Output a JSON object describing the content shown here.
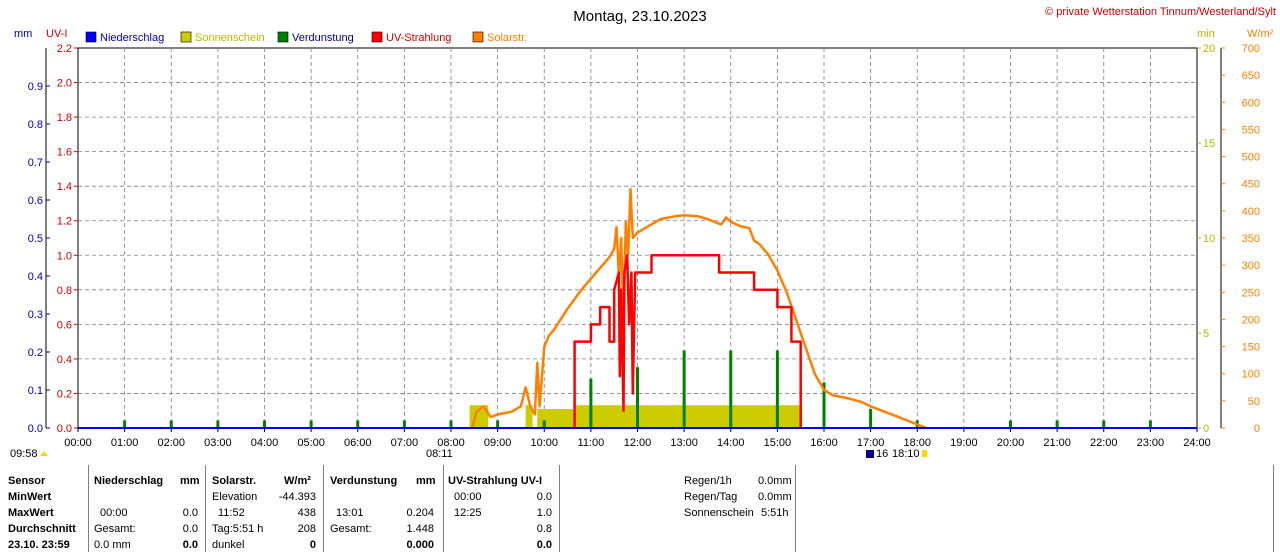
{
  "title": "Montag, 23.10.2023",
  "copyright": "© private Wetterstation Tinnum/Westerland/Sylt",
  "axis_units": {
    "left_outer": "mm",
    "left_inner": "UV-I",
    "right_inner": "min",
    "right_outer": "W/m²"
  },
  "legend": [
    {
      "label": "Niederschlag",
      "color": "#0000ff",
      "text_color": "#0000a0"
    },
    {
      "label": "Sonnenschein",
      "color": "#cccc00",
      "text_color": "#b8b800"
    },
    {
      "label": "Verdunstung",
      "color": "#008000",
      "text_color": "#000080"
    },
    {
      "label": "UV-Strahlung",
      "color": "#ff0000",
      "text_color": "#d00000"
    },
    {
      "label": "Solarstr.",
      "color": "#ff8000",
      "text_color": "#ff8000"
    }
  ],
  "sun_times": {
    "sunrise": "08:11",
    "sunset": "18:10",
    "daylight": "09:58",
    "sunset_marker": "16"
  },
  "chart_data": {
    "type": "line",
    "x_ticks": [
      "00:00",
      "01:00",
      "02:00",
      "03:00",
      "04:00",
      "05:00",
      "06:00",
      "07:00",
      "08:00",
      "09:00",
      "10:00",
      "11:00",
      "12:00",
      "13:00",
      "14:00",
      "15:00",
      "16:00",
      "17:00",
      "18:00",
      "19:00",
      "20:00",
      "21:00",
      "22:00",
      "23:00",
      "24:00"
    ],
    "xlim": [
      0,
      24
    ],
    "axes": {
      "mm": {
        "ticks": [
          "0.0",
          "0.1",
          "0.2",
          "0.3",
          "0.4",
          "0.5",
          "0.6",
          "0.7",
          "0.8",
          "0.9"
        ],
        "ylim": [
          0,
          1.0
        ]
      },
      "uv": {
        "ticks": [
          "0.0",
          "0.2",
          "0.4",
          "0.6",
          "0.8",
          "1.0",
          "1.2",
          "1.4",
          "1.6",
          "1.8",
          "2.0",
          "2.2"
        ],
        "ylim": [
          0,
          2.2
        ]
      },
      "min": {
        "ticks": [
          "0",
          "5",
          "10",
          "15",
          "20"
        ],
        "ylim": [
          0,
          20
        ]
      },
      "wm2": {
        "ticks": [
          "0",
          "50",
          "100",
          "150",
          "200",
          "250",
          "300",
          "350",
          "400",
          "450",
          "500",
          "550",
          "600",
          "650",
          "700"
        ],
        "ylim": [
          0,
          700
        ]
      }
    },
    "series": [
      {
        "name": "Solarstr.",
        "axis": "wm2",
        "color": "#ff8000",
        "points": [
          [
            8.45,
            0
          ],
          [
            8.55,
            30
          ],
          [
            8.7,
            40
          ],
          [
            8.85,
            20
          ],
          [
            9.0,
            25
          ],
          [
            9.3,
            30
          ],
          [
            9.5,
            40
          ],
          [
            9.6,
            75
          ],
          [
            9.7,
            40
          ],
          [
            9.8,
            25
          ],
          [
            9.85,
            120
          ],
          [
            9.9,
            40
          ],
          [
            10.0,
            150
          ],
          [
            10.1,
            170
          ],
          [
            10.2,
            180
          ],
          [
            10.5,
            220
          ],
          [
            10.8,
            255
          ],
          [
            11.1,
            285
          ],
          [
            11.3,
            305
          ],
          [
            11.4,
            315
          ],
          [
            11.5,
            330
          ],
          [
            11.55,
            370
          ],
          [
            11.6,
            280
          ],
          [
            11.65,
            350
          ],
          [
            11.7,
            190
          ],
          [
            11.75,
            380
          ],
          [
            11.8,
            320
          ],
          [
            11.85,
            440
          ],
          [
            11.9,
            350
          ],
          [
            12.0,
            360
          ],
          [
            12.2,
            370
          ],
          [
            12.5,
            385
          ],
          [
            12.8,
            390
          ],
          [
            13.0,
            392
          ],
          [
            13.3,
            390
          ],
          [
            13.5,
            385
          ],
          [
            13.7,
            378
          ],
          [
            13.8,
            375
          ],
          [
            13.9,
            388
          ],
          [
            14.0,
            380
          ],
          [
            14.2,
            372
          ],
          [
            14.4,
            368
          ],
          [
            14.5,
            345
          ],
          [
            14.6,
            340
          ],
          [
            14.8,
            320
          ],
          [
            15.0,
            290
          ],
          [
            15.2,
            250
          ],
          [
            15.4,
            200
          ],
          [
            15.6,
            150
          ],
          [
            15.8,
            100
          ],
          [
            16.0,
            70
          ],
          [
            16.2,
            60
          ],
          [
            16.5,
            55
          ],
          [
            16.8,
            48
          ],
          [
            17.0,
            40
          ],
          [
            17.3,
            30
          ],
          [
            17.6,
            20
          ],
          [
            17.9,
            10
          ],
          [
            18.1,
            3
          ],
          [
            18.2,
            0
          ]
        ]
      },
      {
        "name": "UV-Strahlung",
        "axis": "uv",
        "color": "#ff0000",
        "points": [
          [
            10.65,
            0
          ],
          [
            10.65,
            0.5
          ],
          [
            11.0,
            0.5
          ],
          [
            11.0,
            0.6
          ],
          [
            11.2,
            0.6
          ],
          [
            11.2,
            0.7
          ],
          [
            11.4,
            0.7
          ],
          [
            11.4,
            0.5
          ],
          [
            11.5,
            0.5
          ],
          [
            11.5,
            0.8
          ],
          [
            11.6,
            0.9
          ],
          [
            11.62,
            0.3
          ],
          [
            11.65,
            0.8
          ],
          [
            11.7,
            0.1
          ],
          [
            11.72,
            0.9
          ],
          [
            11.78,
            1.0
          ],
          [
            11.82,
            0.6
          ],
          [
            11.87,
            0.9
          ],
          [
            11.9,
            0.2
          ],
          [
            11.95,
            0.9
          ],
          [
            12.3,
            0.9
          ],
          [
            12.3,
            1.0
          ],
          [
            13.75,
            1.0
          ],
          [
            13.75,
            0.9
          ],
          [
            14.5,
            0.9
          ],
          [
            14.5,
            0.8
          ],
          [
            15.0,
            0.8
          ],
          [
            15.0,
            0.7
          ],
          [
            15.3,
            0.7
          ],
          [
            15.3,
            0.5
          ],
          [
            15.5,
            0.5
          ],
          [
            15.5,
            0.0
          ]
        ]
      }
    ],
    "sunshine_bars": {
      "axis": "min",
      "color": "#cccc00",
      "bars": [
        [
          8.4,
          8.8,
          1.2
        ],
        [
          9.6,
          9.75,
          1.2
        ],
        [
          9.85,
          10.65,
          1.0
        ],
        [
          10.65,
          15.5,
          1.2
        ]
      ]
    },
    "evaporation_spikes": {
      "axis": "mm",
      "color": "#008000",
      "values": [
        [
          1,
          0.02
        ],
        [
          2,
          0.02
        ],
        [
          3,
          0.02
        ],
        [
          4,
          0.02
        ],
        [
          5,
          0.02
        ],
        [
          6,
          0.02
        ],
        [
          7,
          0.02
        ],
        [
          8,
          0.02
        ],
        [
          9,
          0.02
        ],
        [
          10,
          0.02
        ],
        [
          11,
          0.13
        ],
        [
          12,
          0.16
        ],
        [
          13,
          0.204
        ],
        [
          14,
          0.204
        ],
        [
          15,
          0.204
        ],
        [
          16,
          0.12
        ],
        [
          17,
          0.05
        ],
        [
          18,
          0.02
        ],
        [
          20,
          0.02
        ],
        [
          21,
          0.02
        ],
        [
          22,
          0.02
        ],
        [
          23,
          0.02
        ]
      ]
    },
    "precipitation": {
      "axis": "mm",
      "color": "#0000ff",
      "values": [
        0.0
      ]
    }
  },
  "table": {
    "col_sensor": {
      "header": "Sensor",
      "rows": [
        "MinWert",
        "MaxWert",
        "Durchschnitt",
        "23.10. 23:59"
      ]
    },
    "col_rain": {
      "header": "Niederschlag",
      "unit": "mm",
      "rows": [
        [
          "",
          ""
        ],
        [
          "00:00",
          "0.0"
        ],
        [
          "Gesamt:",
          "0.0"
        ],
        [
          "0.0 mm",
          "0.0"
        ]
      ]
    },
    "col_solar": {
      "header": "Solarstr.",
      "unit": "W/m²",
      "rows": [
        [
          "Elevation",
          "-44.393"
        ],
        [
          "11:52",
          "438"
        ],
        [
          "Tag:5:51 h",
          "208"
        ],
        [
          "dunkel",
          "0"
        ]
      ]
    },
    "col_evap": {
      "header": "Verdunstung",
      "unit": "mm",
      "rows": [
        [
          "",
          ""
        ],
        [
          "13:01",
          "0.204"
        ],
        [
          "Gesamt:",
          "1.448"
        ],
        [
          "",
          "0.000"
        ]
      ]
    },
    "col_uv": {
      "header": "UV-Strahlung UV-I",
      "rows": [
        [
          "00:00",
          "0.0"
        ],
        [
          "12:25",
          "1.0"
        ],
        [
          "",
          "0.8"
        ],
        [
          "",
          "0.0"
        ]
      ]
    },
    "col_extra": {
      "rows": [
        [
          "Regen/1h",
          "0.0mm"
        ],
        [
          "Regen/Tag",
          "0.0mm"
        ],
        [
          "Sonnenschein",
          "5:51h"
        ]
      ]
    }
  }
}
